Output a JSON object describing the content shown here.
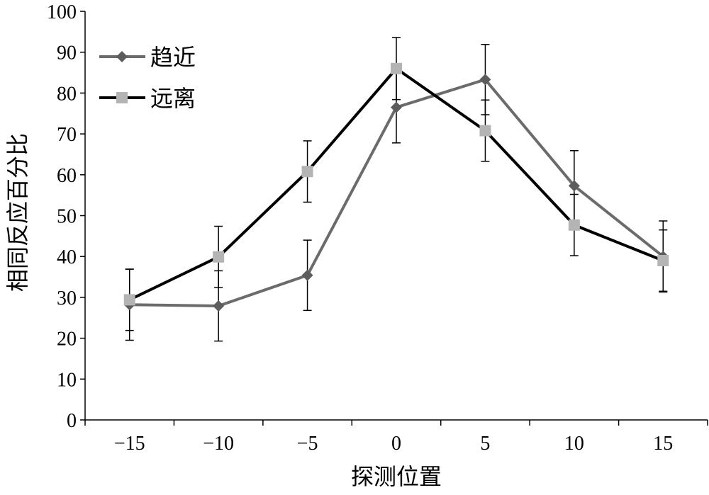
{
  "chart_data": {
    "type": "line",
    "title": "",
    "xlabel": "探测位置",
    "ylabel": "相同反应百分比",
    "categories": [
      "−15",
      "−10",
      "−5",
      "0",
      "5",
      "10",
      "15"
    ],
    "ylim": [
      0,
      100
    ],
    "yticks": [
      "0",
      "10",
      "20",
      "30",
      "40",
      "50",
      "60",
      "70",
      "80",
      "90",
      "100"
    ],
    "grid": false,
    "legend_position": "top-left",
    "series": [
      {
        "name": "趋近",
        "color": "#6b6b6b",
        "marker": "diamond",
        "marker_color": "#5c5c5c",
        "values": [
          28.2,
          27.9,
          35.4,
          76.5,
          83.3,
          57.3,
          40.0
        ],
        "errors": [
          8.7,
          8.6,
          8.6,
          8.7,
          8.6,
          8.6,
          8.7
        ]
      },
      {
        "name": "远离",
        "color": "#000000",
        "marker": "square",
        "marker_color": "#b4b4b4",
        "values": [
          29.4,
          39.9,
          60.8,
          86.0,
          70.8,
          47.7,
          39.0
        ],
        "errors": [
          7.5,
          7.5,
          7.5,
          7.6,
          7.5,
          7.5,
          7.5
        ]
      }
    ]
  }
}
